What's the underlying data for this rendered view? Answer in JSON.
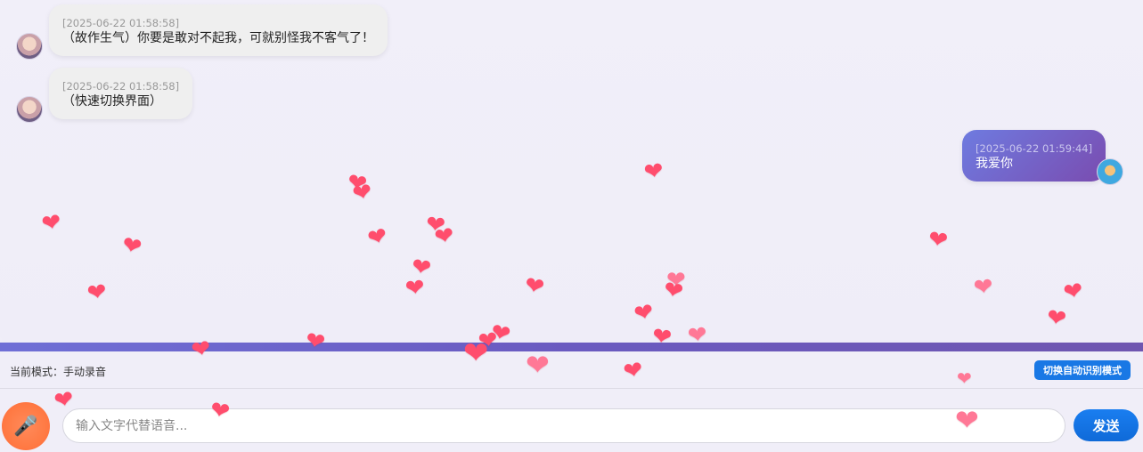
{
  "messages": [
    {
      "side": "bot",
      "timestamp": "[2025-06-22 01:58:58]",
      "text": "（故作生气）你要是敢对不起我，可就别怪我不客气了！"
    },
    {
      "side": "bot",
      "timestamp": "[2025-06-22 01:58:58]",
      "text": "（快速切换界面）"
    },
    {
      "side": "user",
      "timestamp": "[2025-06-22 01:59:44]",
      "text": "我爱你"
    }
  ],
  "mode": {
    "label": "当前模式：手动录音",
    "switch_button": "切换自动识别模式"
  },
  "input": {
    "placeholder": "输入文字代替语音...",
    "value": ""
  },
  "send_button": "发送",
  "icons": {
    "mic": "microphone-icon",
    "heart": "heart-icon"
  },
  "colors": {
    "heart": "#ff4d6d",
    "send_button": "#1a7ef0",
    "switch_button": "#1978e5",
    "user_bubble": "#6e7be0",
    "mic_button": "#ff7a44"
  }
}
